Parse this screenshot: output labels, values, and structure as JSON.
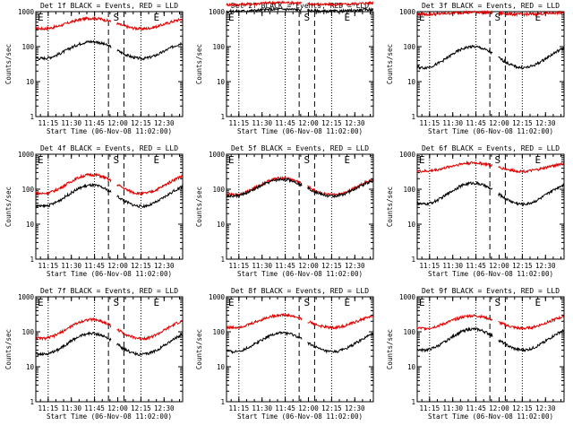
{
  "colors": {
    "events": "#000000",
    "lld": "#e00000",
    "axis": "#000000",
    "background": "#ffffff"
  },
  "chart_data": [
    {
      "type": "line",
      "title": "Det 1f BLACK = Events, RED = LLD",
      "xlabel": "Start Time (06-Nov-08 11:02:00)",
      "ylabel": "Counts/sec",
      "yscale": "log",
      "ylim": [
        1,
        1000
      ],
      "xlim_min": [
        5,
        100
      ],
      "marks": {
        "E": [
          5,
          80
        ],
        "S": [
          57
        ]
      },
      "xticks": [
        "11:15",
        "11:30",
        "11:45",
        "12:00",
        "12:15",
        "12:30"
      ],
      "yticks": [
        "1",
        "10",
        "100",
        "1000"
      ],
      "dotted_min": [
        13,
        43,
        73
      ],
      "dashed_min": [
        52,
        62
      ],
      "lld": {
        "base": 460,
        "amp": 0.25
      },
      "events": {
        "base": 80,
        "amp": 0.4
      }
    },
    {
      "type": "line",
      "title": "Det 2f BLACK = Events, RED = LLD",
      "xlabel": "Start Time (06-Nov-08 11:02:00)",
      "ylabel": "Counts/sec",
      "yscale": "log",
      "ylim": [
        1,
        1000
      ],
      "xlim_min": [
        5,
        100
      ],
      "marks": {
        "E": [
          5,
          80
        ],
        "S": [
          57
        ]
      },
      "xticks": [
        "11:15",
        "11:30",
        "11:45",
        "12:00",
        "12:15",
        "12:30"
      ],
      "yticks": [
        "1",
        "10",
        "100",
        "1000"
      ],
      "dotted_min": [
        13,
        43,
        73
      ],
      "dashed_min": [
        52,
        62
      ],
      "lld": {
        "base": 1700,
        "amp": 0.05
      },
      "events": {
        "base": 1100,
        "amp": 0.05
      }
    },
    {
      "type": "line",
      "title": "Det 3f BLACK = Events, RED = LLD",
      "xlabel": "Start Time (06-Nov-08 11:02:00)",
      "ylabel": "Counts/sec",
      "yscale": "log",
      "ylim": [
        1,
        1000
      ],
      "xlim_min": [
        5,
        100
      ],
      "marks": {
        "E": [
          5,
          80
        ],
        "S": [
          57
        ]
      },
      "xticks": [
        "11:15",
        "11:30",
        "11:45",
        "12:00",
        "12:15",
        "12:30"
      ],
      "yticks": [
        "1",
        "10",
        "100",
        "1000"
      ],
      "dotted_min": [
        13,
        43,
        73
      ],
      "dashed_min": [
        52,
        62
      ],
      "lld": {
        "base": 900,
        "amp": 0.05
      },
      "events": {
        "base": 50,
        "amp": 0.5
      }
    },
    {
      "type": "line",
      "title": "Det 4f BLACK = Events, RED = LLD",
      "xlabel": "Start Time (06-Nov-08 11:02:00)",
      "ylabel": "Counts/sec",
      "yscale": "log",
      "ylim": [
        1,
        1000
      ],
      "xlim_min": [
        5,
        100
      ],
      "marks": {
        "E": [
          5,
          80
        ],
        "S": [
          57
        ]
      },
      "xticks": [
        "11:15",
        "11:30",
        "11:45",
        "12:00",
        "12:15",
        "12:30"
      ],
      "yticks": [
        "1",
        "10",
        "100",
        "1000"
      ],
      "dotted_min": [
        13,
        43,
        73
      ],
      "dashed_min": [
        52,
        62
      ],
      "lld": {
        "base": 140,
        "amp": 0.45
      },
      "events": {
        "base": 65,
        "amp": 0.5
      }
    },
    {
      "type": "line",
      "title": "Det 5f BLACK = Events, RED = LLD",
      "xlabel": "Start Time (06-Nov-08 11:02:00)",
      "ylabel": "Counts/sec",
      "yscale": "log",
      "ylim": [
        1,
        1000
      ],
      "xlim_min": [
        5,
        100
      ],
      "marks": {
        "E": [
          5,
          80
        ],
        "S": [
          57
        ]
      },
      "xticks": [
        "11:15",
        "11:30",
        "11:45",
        "12:00",
        "12:15",
        "12:30"
      ],
      "yticks": [
        "1",
        "10",
        "100",
        "1000"
      ],
      "dotted_min": [
        13,
        43,
        73
      ],
      "dashed_min": [
        52,
        62
      ],
      "lld": {
        "base": 120,
        "amp": 0.4
      },
      "events": {
        "base": 110,
        "amp": 0.4
      }
    },
    {
      "type": "line",
      "title": "Det 6f BLACK = Events, RED = LLD",
      "xlabel": "Start Time (06-Nov-08 11:02:00)",
      "ylabel": "Counts/sec",
      "yscale": "log",
      "ylim": [
        1,
        1000
      ],
      "xlim_min": [
        5,
        100
      ],
      "marks": {
        "E": [
          5,
          80
        ],
        "S": [
          57
        ]
      },
      "xticks": [
        "11:15",
        "11:30",
        "11:45",
        "12:00",
        "12:15",
        "12:30"
      ],
      "yticks": [
        "1",
        "10",
        "100",
        "1000"
      ],
      "dotted_min": [
        13,
        43,
        73
      ],
      "dashed_min": [
        52,
        62
      ],
      "lld": {
        "base": 430,
        "amp": 0.2
      },
      "events": {
        "base": 75,
        "amp": 0.5
      }
    },
    {
      "type": "line",
      "title": "Det 7f BLACK = Events, RED = LLD",
      "xlabel": "Start Time (06-Nov-08 11:02:00)",
      "ylabel": "Counts/sec",
      "yscale": "log",
      "ylim": [
        1,
        1000
      ],
      "xlim_min": [
        5,
        100
      ],
      "marks": {
        "E": [
          5,
          80
        ],
        "S": [
          57
        ]
      },
      "xticks": [
        "11:15",
        "11:30",
        "11:45",
        "12:00",
        "12:15",
        "12:30"
      ],
      "yticks": [
        "1",
        "10",
        "100",
        "1000"
      ],
      "dotted_min": [
        13,
        43,
        73
      ],
      "dashed_min": [
        52,
        62
      ],
      "lld": {
        "base": 120,
        "amp": 0.45
      },
      "events": {
        "base": 45,
        "amp": 0.5
      }
    },
    {
      "type": "line",
      "title": "Det 8f BLACK = Events, RED = LLD",
      "xlabel": "Start Time (06-Nov-08 11:02:00)",
      "ylabel": "Counts/sec",
      "yscale": "log",
      "ylim": [
        1,
        1000
      ],
      "xlim_min": [
        5,
        100
      ],
      "marks": {
        "E": [
          5,
          80
        ],
        "S": [
          57
        ]
      },
      "xticks": [
        "11:15",
        "11:30",
        "11:45",
        "12:00",
        "12:15",
        "12:30"
      ],
      "yticks": [
        "1",
        "10",
        "100",
        "1000"
      ],
      "dotted_min": [
        13,
        43,
        73
      ],
      "dashed_min": [
        52,
        62
      ],
      "lld": {
        "base": 200,
        "amp": 0.3
      },
      "events": {
        "base": 50,
        "amp": 0.45
      }
    },
    {
      "type": "line",
      "title": "Det 9f BLACK = Events, RED = LLD",
      "xlabel": "Start Time (06-Nov-08 11:02:00)",
      "ylabel": "Counts/sec",
      "yscale": "log",
      "ylim": [
        1,
        1000
      ],
      "xlim_min": [
        5,
        100
      ],
      "marks": {
        "E": [
          5,
          80
        ],
        "S": [
          57
        ]
      },
      "xticks": [
        "11:15",
        "11:30",
        "11:45",
        "12:00",
        "12:15",
        "12:30"
      ],
      "yticks": [
        "1",
        "10",
        "100",
        "1000"
      ],
      "dotted_min": [
        13,
        43,
        73
      ],
      "dashed_min": [
        52,
        62
      ],
      "lld": {
        "base": 190,
        "amp": 0.3
      },
      "events": {
        "base": 60,
        "amp": 0.5
      }
    }
  ]
}
